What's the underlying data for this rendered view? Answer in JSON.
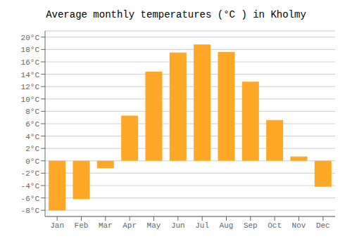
{
  "chart_data": {
    "type": "bar",
    "title": "Average monthly temperatures (°C ) in Kholmy",
    "categories": [
      "Jan",
      "Feb",
      "Mar",
      "Apr",
      "May",
      "Jun",
      "Jul",
      "Aug",
      "Sep",
      "Oct",
      "Nov",
      "Dec"
    ],
    "values": [
      -8,
      -6.2,
      -1.2,
      7.3,
      14.4,
      17.5,
      18.8,
      17.6,
      12.8,
      6.6,
      0.7,
      -4.2
    ],
    "color": "#FFA726",
    "ylim": [
      -9,
      21
    ],
    "yticks": [
      {
        "value": -8,
        "label": "-8°C"
      },
      {
        "value": -6,
        "label": "-6°C"
      },
      {
        "value": -4,
        "label": "-4°C"
      },
      {
        "value": -2,
        "label": "-2°C"
      },
      {
        "value": 0,
        "label": "0°C"
      },
      {
        "value": 2,
        "label": "2°C"
      },
      {
        "value": 4,
        "label": "4°C"
      },
      {
        "value": 6,
        "label": "6°C"
      },
      {
        "value": 8,
        "label": "8°C"
      },
      {
        "value": 10,
        "label": "10°C"
      },
      {
        "value": 12,
        "label": "12°C"
      },
      {
        "value": 14,
        "label": "14°C"
      },
      {
        "value": 16,
        "label": "16°C"
      },
      {
        "value": 18,
        "label": "18°C"
      },
      {
        "value": 20,
        "label": "20°C"
      }
    ],
    "grid": true
  }
}
